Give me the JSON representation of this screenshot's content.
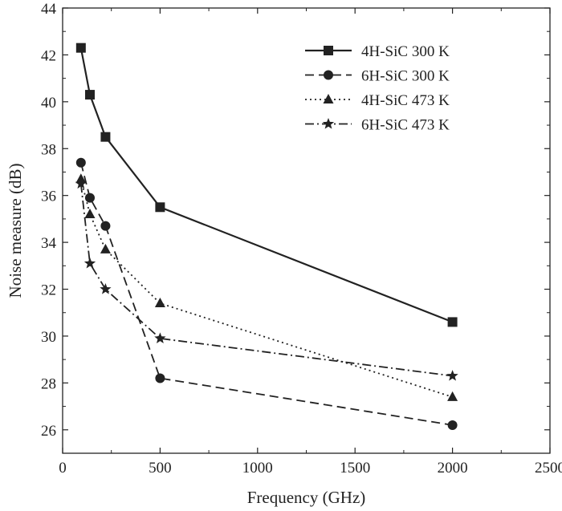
{
  "chart_data": {
    "type": "line",
    "title": "",
    "xlabel": "Frequency (GHz)",
    "ylabel": "Noise measure (dB)",
    "xlim": [
      0,
      2500
    ],
    "ylim": [
      25,
      44
    ],
    "xticks": [
      0,
      500,
      1000,
      1500,
      2000,
      2500
    ],
    "yticks": [
      26,
      28,
      30,
      32,
      34,
      36,
      38,
      40,
      42,
      44
    ],
    "grid": false,
    "legend_position": "top-right",
    "series": [
      {
        "name": "4H-SiC 300 K",
        "marker": "square",
        "line_style": "solid",
        "x": [
          94,
          140,
          220,
          500,
          2000
        ],
        "y": [
          42.3,
          40.3,
          38.5,
          35.5,
          30.6
        ]
      },
      {
        "name": "6H-SiC 300 K",
        "marker": "circle",
        "line_style": "dashed",
        "x": [
          94,
          140,
          220,
          500,
          2000
        ],
        "y": [
          37.4,
          35.9,
          34.7,
          28.2,
          26.2
        ]
      },
      {
        "name": "4H-SiC 473 K",
        "marker": "triangle",
        "line_style": "dotted",
        "x": [
          94,
          140,
          220,
          500,
          2000
        ],
        "y": [
          36.7,
          35.2,
          33.7,
          31.4,
          27.4
        ]
      },
      {
        "name": "6H-SiC 473 K",
        "marker": "star",
        "line_style": "dash-dot",
        "x": [
          94,
          140,
          220,
          500,
          2000
        ],
        "y": [
          36.5,
          33.1,
          32.0,
          29.9,
          28.3
        ]
      }
    ]
  }
}
